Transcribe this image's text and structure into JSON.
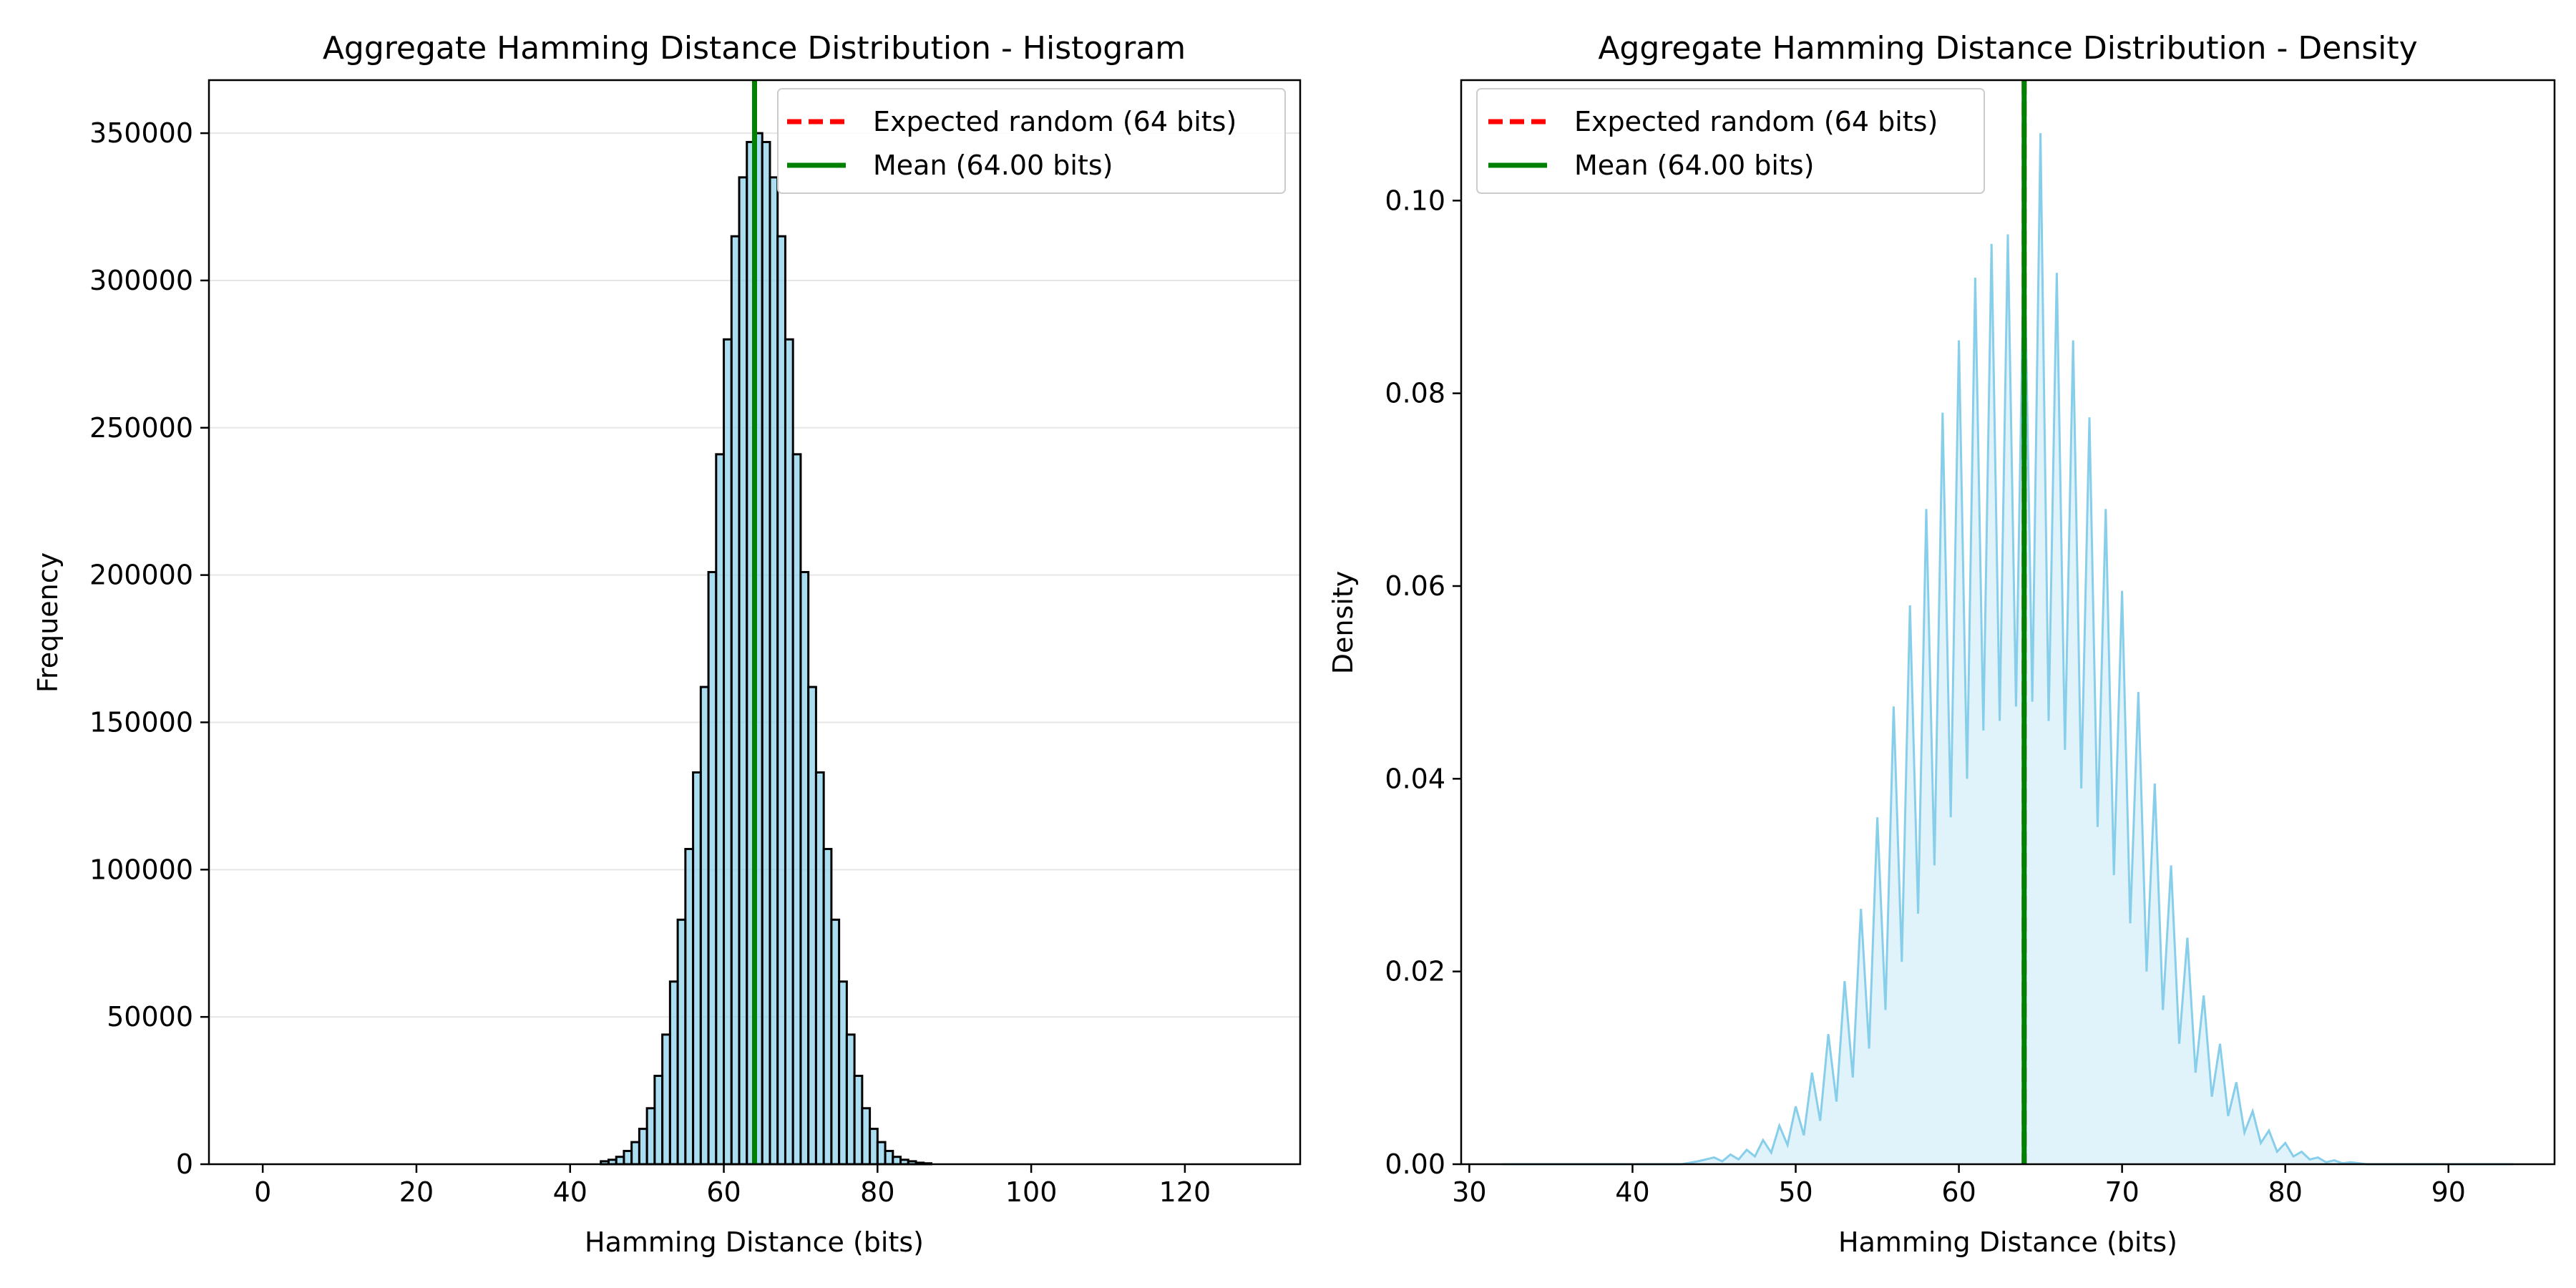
{
  "chart_data": [
    {
      "type": "bar",
      "title": "Aggregate Hamming Distance Distribution - Histogram",
      "xlabel": "Hamming Distance (bits)",
      "ylabel": "Frequency",
      "xlim": [
        -7,
        135
      ],
      "ylim": [
        0,
        368000
      ],
      "xticks": [
        "0",
        "20",
        "40",
        "60",
        "80",
        "100",
        "120"
      ],
      "yticks": [
        "0",
        "50000",
        "100000",
        "150000",
        "200000",
        "250000",
        "300000",
        "350000"
      ],
      "grid": "horizontal",
      "legend_position": "top-right",
      "bar_color": "#87ceeb",
      "bar_edge_color": "#000000",
      "bins": {
        "x": [
          44,
          45,
          46,
          47,
          48,
          49,
          50,
          51,
          52,
          53,
          54,
          55,
          56,
          57,
          58,
          59,
          60,
          61,
          62,
          63,
          64,
          65,
          66,
          67,
          68,
          69,
          70,
          71,
          72,
          73,
          74,
          75,
          76,
          77,
          78,
          79,
          80,
          81,
          82,
          83,
          84,
          85,
          86
        ],
        "values": [
          1000,
          1500,
          2500,
          4500,
          7500,
          12000,
          19000,
          30000,
          44000,
          62000,
          83000,
          107000,
          133000,
          162000,
          201000,
          241000,
          280000,
          315000,
          335000,
          347000,
          350000,
          347000,
          335000,
          315000,
          280000,
          241000,
          201000,
          162000,
          133000,
          107000,
          83000,
          62000,
          44000,
          30000,
          19000,
          12000,
          7500,
          4500,
          2500,
          1500,
          1000,
          500,
          300
        ]
      },
      "reference_lines": [
        {
          "label": "Expected random (64 bits)",
          "x": 64,
          "color": "#ff0000",
          "style": "dashed"
        },
        {
          "label": "Mean (64.00 bits)",
          "x": 64,
          "color": "#008000",
          "style": "solid"
        }
      ]
    },
    {
      "type": "area",
      "title": "Aggregate Hamming Distance Distribution - Density",
      "xlabel": "Hamming Distance (bits)",
      "ylabel": "Density",
      "xlim": [
        29.5,
        96.5
      ],
      "ylim": [
        0,
        0.1125
      ],
      "xticks": [
        "30",
        "40",
        "50",
        "60",
        "70",
        "80",
        "90"
      ],
      "yticks": [
        "0.00",
        "0.02",
        "0.04",
        "0.06",
        "0.08",
        "0.10"
      ],
      "grid": "none",
      "legend_position": "top-left",
      "line_color": "#87ceeb",
      "series": {
        "x": [
          32,
          43,
          44,
          45,
          45.5,
          46,
          46.5,
          47,
          47.5,
          48,
          48.5,
          49,
          49.5,
          50,
          50.5,
          51,
          51.5,
          52,
          52.5,
          53,
          53.5,
          54,
          54.5,
          55,
          55.5,
          56,
          56.5,
          57,
          57.5,
          58,
          58.5,
          59,
          59.5,
          60,
          60.5,
          61,
          61.5,
          62,
          62.5,
          63,
          63.5,
          64,
          64.5,
          65,
          65.5,
          66,
          66.5,
          67,
          67.5,
          68,
          68.5,
          69,
          69.5,
          70,
          70.5,
          71,
          71.5,
          72,
          72.5,
          73,
          73.5,
          74,
          74.5,
          75,
          75.5,
          76,
          76.5,
          77,
          77.5,
          78,
          78.5,
          79,
          79.5,
          80,
          80.5,
          81,
          81.5,
          82,
          82.5,
          83,
          83.5,
          84,
          85,
          94
        ],
        "values": [
          0,
          0,
          0.0003,
          0.0007,
          0.0003,
          0.001,
          0.0005,
          0.0015,
          0.0008,
          0.0025,
          0.0012,
          0.004,
          0.002,
          0.006,
          0.003,
          0.0095,
          0.0045,
          0.0135,
          0.0065,
          0.019,
          0.009,
          0.0265,
          0.012,
          0.036,
          0.016,
          0.0475,
          0.021,
          0.058,
          0.026,
          0.068,
          0.031,
          0.078,
          0.036,
          0.0855,
          0.04,
          0.092,
          0.045,
          0.0955,
          0.046,
          0.0965,
          0.0475,
          0.097,
          0.048,
          0.107,
          0.046,
          0.0925,
          0.043,
          0.0855,
          0.039,
          0.0775,
          0.035,
          0.068,
          0.03,
          0.0595,
          0.025,
          0.049,
          0.02,
          0.0395,
          0.016,
          0.031,
          0.0125,
          0.0235,
          0.0095,
          0.0175,
          0.007,
          0.0125,
          0.005,
          0.0085,
          0.0033,
          0.0055,
          0.0022,
          0.0035,
          0.0013,
          0.0022,
          0.0008,
          0.0013,
          0.0005,
          0.0007,
          0.0002,
          0.0004,
          0.0001,
          0.0002,
          0,
          0
        ]
      },
      "reference_lines": [
        {
          "label": "Expected random (64 bits)",
          "x": 64,
          "color": "#ff0000",
          "style": "dashed"
        },
        {
          "label": "Mean (64.00 bits)",
          "x": 64,
          "color": "#008000",
          "style": "solid"
        }
      ]
    }
  ]
}
